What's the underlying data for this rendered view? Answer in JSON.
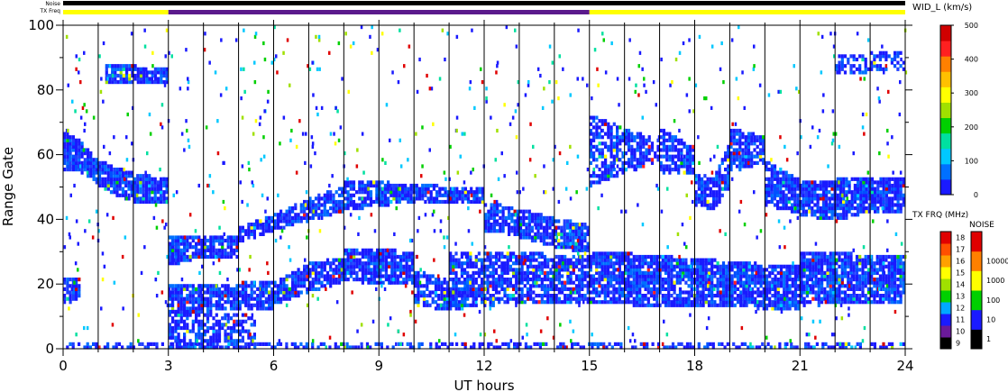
{
  "chart_data": {
    "type": "heatmap",
    "title": "",
    "xlabel": "UT hours",
    "ylabel": "Range Gate",
    "xlim": [
      0,
      24
    ],
    "ylim": [
      0,
      100
    ],
    "x_ticks": [
      "0",
      "3",
      "6",
      "9",
      "12",
      "15",
      "18",
      "21",
      "24"
    ],
    "y_ticks": [
      "0",
      "20",
      "40",
      "60",
      "80",
      "100"
    ],
    "grid": "vertical lines every 1 UT hour",
    "background": "#ffffff",
    "top_bar_labels": {
      "noise": "Noise",
      "txfreq": "TX Freq"
    },
    "top_bar_segments": [
      {
        "from": 0,
        "to": 3,
        "color": "#ffff00"
      },
      {
        "from": 3,
        "to": 15,
        "color": "#5b1a8c"
      },
      {
        "from": 15,
        "to": 24,
        "color": "#ffff00"
      }
    ],
    "colorbar_width": {
      "title": "WID_L (km/s)",
      "ticks": [
        "0",
        "100",
        "200",
        "300",
        "400",
        "500"
      ],
      "range": [
        0,
        500
      ],
      "colors": [
        "#1a1aff",
        "#0070ff",
        "#00c8ff",
        "#00e0a0",
        "#00d000",
        "#a0e000",
        "#ffff00",
        "#ffc000",
        "#ff8000",
        "#ff2020",
        "#d00000"
      ]
    },
    "colorbar_txfreq": {
      "title": "TX FRQ (MHz)",
      "ticks": [
        "9",
        "10",
        "11",
        "12",
        "13",
        "14",
        "15",
        "16",
        "17",
        "18"
      ],
      "colors": [
        "#000000",
        "#6a1a9a",
        "#1a1aff",
        "#00a8ff",
        "#00d000",
        "#a0e000",
        "#ffff00",
        "#ffa000",
        "#ff5000",
        "#e00000"
      ]
    },
    "colorbar_noise": {
      "title": "NOISE",
      "ticks": [
        "1",
        "10",
        "100",
        "1000",
        "10000"
      ],
      "colors": [
        "#000000",
        "#1a1aff",
        "#00d000",
        "#ffff00",
        "#ff8000",
        "#e00000"
      ]
    },
    "bands": [
      {
        "x": [
          0,
          3
        ],
        "y": [
          [
            56,
            55,
            51,
            48,
            46,
            45,
            45
          ],
          [
            67,
            64,
            58,
            56,
            54,
            53,
            52
          ]
        ],
        "density": 0.9,
        "main_color": "#1a1aff"
      },
      {
        "x": [
          0,
          0.5
        ],
        "y": [
          [
            15,
            15
          ],
          [
            22,
            22
          ]
        ],
        "density": 0.8,
        "main_color": "#1a1aff"
      },
      {
        "x": [
          1.2,
          3
        ],
        "y": [
          [
            82,
            82,
            82
          ],
          [
            88,
            87,
            86
          ]
        ],
        "density": 0.9,
        "main_color": "#1a1aff"
      },
      {
        "x": [
          3,
          5
        ],
        "y": [
          [
            26,
            28,
            28,
            29
          ],
          [
            34,
            35,
            35,
            35
          ]
        ],
        "density": 0.85,
        "main_color": "#1a1aff"
      },
      {
        "x": [
          5,
          8
        ],
        "y": [
          [
            33,
            37,
            40,
            43
          ],
          [
            37,
            41,
            46,
            50
          ]
        ],
        "density": 0.85,
        "main_color": "#1a1aff"
      },
      {
        "x": [
          8,
          12
        ],
        "y": [
          [
            43,
            45,
            45,
            45
          ],
          [
            52,
            51,
            50,
            49
          ]
        ],
        "density": 0.85,
        "main_color": "#1a1aff"
      },
      {
        "x": [
          12,
          15
        ],
        "y": [
          [
            37,
            35,
            32,
            30
          ],
          [
            45,
            43,
            40,
            38
          ]
        ],
        "density": 0.85,
        "main_color": "#1a1aff"
      },
      {
        "x": [
          3,
          6
        ],
        "y": [
          [
            10,
            12,
            12,
            13
          ],
          [
            20,
            20,
            20,
            21
          ]
        ],
        "density": 0.8,
        "main_color": "#1a1aff"
      },
      {
        "x": [
          6,
          8
        ],
        "y": [
          [
            14,
            18,
            21
          ],
          [
            20,
            26,
            28
          ]
        ],
        "density": 0.85,
        "main_color": "#1a1aff"
      },
      {
        "x": [
          8,
          10
        ],
        "y": [
          [
            22,
            20,
            20
          ],
          [
            30,
            31,
            29
          ]
        ],
        "density": 0.9,
        "main_color": "#1a1aff"
      },
      {
        "x": [
          10,
          11.5
        ],
        "y": [
          [
            14,
            12,
            12
          ],
          [
            24,
            22,
            20
          ]
        ],
        "density": 0.7,
        "main_color": "#1a1aff"
      },
      {
        "x": [
          3,
          5.5
        ],
        "y": [
          [
            0,
            0,
            0
          ],
          [
            12,
            11,
            10
          ]
        ],
        "density": 0.6,
        "main_color": "#1a1aff"
      },
      {
        "x": [
          11,
          15
        ],
        "y": [
          [
            13,
            14,
            14,
            14
          ],
          [
            30,
            30,
            29,
            28
          ]
        ],
        "density": 0.75,
        "main_color": "#1a1aff"
      },
      {
        "x": [
          15,
          21
        ],
        "y": [
          [
            14,
            14,
            13,
            13,
            13,
            12
          ],
          [
            30,
            29,
            28,
            27,
            26,
            25
          ]
        ],
        "density": 0.85,
        "main_color": "#1a1aff"
      },
      {
        "x": [
          21,
          24
        ],
        "y": [
          [
            14,
            14,
            14
          ],
          [
            30,
            29,
            29
          ]
        ],
        "density": 0.85,
        "main_color": "#1a1aff"
      },
      {
        "x": [
          15,
          17
        ],
        "y": [
          [
            50,
            55,
            58
          ],
          [
            72,
            68,
            64
          ]
        ],
        "density": 0.6,
        "main_color": "#1a1aff"
      },
      {
        "x": [
          17,
          18
        ],
        "y": [
          [
            55,
            54
          ],
          [
            68,
            62
          ]
        ],
        "density": 0.7,
        "main_color": "#1a1aff"
      },
      {
        "x": [
          18,
          19
        ],
        "y": [
          [
            45,
            43,
            50
          ],
          [
            55,
            52,
            63
          ]
        ],
        "density": 0.85,
        "main_color": "#1a1aff"
      },
      {
        "x": [
          19,
          20
        ],
        "y": [
          [
            55,
            58
          ],
          [
            68,
            65
          ]
        ],
        "density": 0.8,
        "main_color": "#1a1aff"
      },
      {
        "x": [
          20,
          24
        ],
        "y": [
          [
            45,
            42,
            40,
            43,
            42
          ],
          [
            58,
            52,
            52,
            53,
            52
          ]
        ],
        "density": 0.85,
        "main_color": "#1a1aff"
      },
      {
        "x": [
          22,
          24
        ],
        "y": [
          [
            85,
            86,
            87
          ],
          [
            90,
            91,
            92
          ]
        ],
        "density": 0.5,
        "main_color": "#1a1aff"
      },
      {
        "x": [
          0,
          24
        ],
        "y": [
          [
            0,
            0
          ],
          [
            2,
            2
          ]
        ],
        "density": 0.5,
        "main_color": "#1a1aff"
      }
    ]
  }
}
